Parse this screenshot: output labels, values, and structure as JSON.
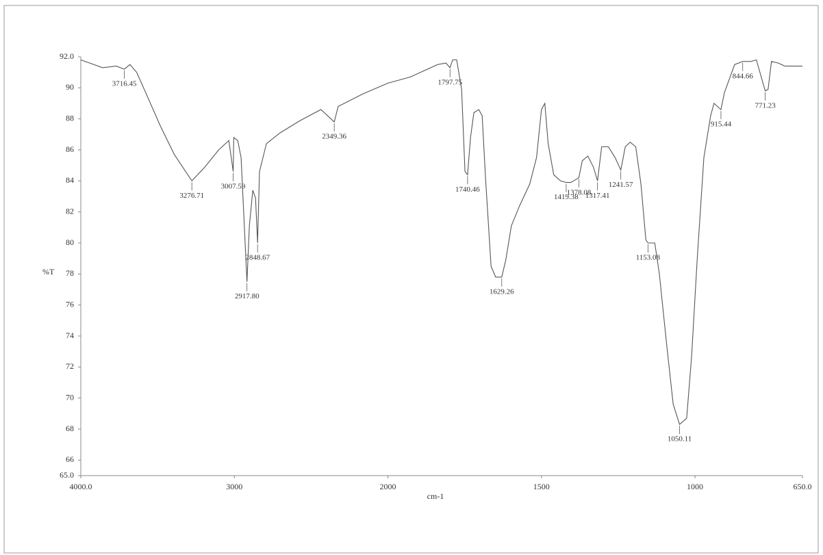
{
  "chart_data": {
    "type": "line",
    "ylabel": "%T",
    "xlabel": "cm-1",
    "xlim": [
      4000,
      650
    ],
    "x_scale_change": 2000,
    "ylim": [
      65,
      92
    ],
    "xticks": [
      {
        "value": 4000,
        "label": "4000.0"
      },
      3000,
      2000,
      1500,
      1000,
      {
        "value": 650,
        "label": "650.0"
      }
    ],
    "yticks": [
      {
        "value": 65,
        "label": "65.0"
      },
      66,
      68,
      70,
      72,
      74,
      76,
      78,
      80,
      82,
      84,
      86,
      88,
      90,
      {
        "value": 92,
        "label": "92.0"
      }
    ],
    "series": [
      {
        "color": "#555555",
        "x": [
          4000,
          3858,
          3769,
          3716.45,
          3680,
          3636,
          3569,
          3480,
          3391,
          3276.71,
          3191,
          3102,
          3036,
          3007.59,
          3004,
          2978,
          2956,
          2917.8,
          2902,
          2880,
          2862,
          2848.67,
          2836,
          2791,
          2702,
          2569,
          2436,
          2349.36,
          2324,
          2164,
          2000,
          1927,
          1838,
          1811,
          1797.75,
          1789,
          1776,
          1760,
          1749,
          1740.46,
          1731,
          1720,
          1704,
          1693,
          1682,
          1664,
          1649,
          1629.26,
          1616,
          1598,
          1571,
          1538,
          1516,
          1500,
          1489,
          1478,
          1460,
          1438,
          1419.38,
          1404,
          1378.08,
          1367,
          1349,
          1331,
          1317.41,
          1304,
          1282,
          1260,
          1241.57,
          1227,
          1211,
          1193,
          1176,
          1160,
          1153.08,
          1131,
          1116,
          1093,
          1071,
          1050.11,
          1027,
          1011,
          993,
          971,
          949,
          938,
          915.44,
          904,
          871,
          844.66,
          818,
          800,
          771.23,
          762,
          751,
          729,
          707,
          650
        ],
        "values": [
          91.8,
          91.3,
          91.4,
          91.2,
          91.5,
          91.0,
          89.5,
          87.5,
          85.7,
          84.0,
          84.9,
          86.0,
          86.6,
          84.6,
          86.8,
          86.6,
          85.5,
          77.5,
          81.1,
          83.4,
          82.9,
          80.0,
          84.6,
          86.4,
          87.1,
          87.9,
          88.6,
          87.8,
          88.8,
          89.6,
          90.3,
          90.7,
          91.5,
          91.6,
          91.3,
          91.8,
          91.8,
          89.9,
          84.6,
          84.4,
          86.8,
          88.4,
          88.6,
          88.2,
          84.2,
          78.5,
          77.8,
          77.8,
          78.9,
          81.1,
          82.4,
          83.8,
          85.5,
          88.6,
          89.0,
          86.4,
          84.4,
          84.0,
          83.9,
          83.9,
          84.2,
          85.3,
          85.6,
          84.9,
          84.0,
          86.2,
          86.2,
          85.5,
          84.7,
          86.2,
          86.5,
          86.2,
          83.8,
          80.2,
          80.0,
          80.0,
          78.0,
          73.6,
          69.6,
          68.3,
          68.7,
          72.7,
          78.9,
          85.5,
          88.2,
          89.0,
          88.6,
          89.7,
          91.5,
          91.7,
          91.7,
          91.8,
          89.8,
          89.9,
          91.7,
          91.6,
          91.4,
          91.4
        ]
      }
    ],
    "peaks": [
      {
        "x": 3716.45,
        "y": 91.2,
        "label": "3716.45"
      },
      {
        "x": 3276.71,
        "y": 84.0,
        "label": "3276.71"
      },
      {
        "x": 3007.59,
        "y": 84.6,
        "label": "3007.59"
      },
      {
        "x": 2917.8,
        "y": 77.5,
        "label": "2917.80"
      },
      {
        "x": 2848.67,
        "y": 80.0,
        "label": "2848.67"
      },
      {
        "x": 2349.36,
        "y": 87.8,
        "label": "2349.36"
      },
      {
        "x": 1797.75,
        "y": 91.3,
        "label": "1797.75"
      },
      {
        "x": 1740.46,
        "y": 84.4,
        "label": "1740.46"
      },
      {
        "x": 1629.26,
        "y": 77.8,
        "label": "1629.26"
      },
      {
        "x": 1419.38,
        "y": 83.9,
        "label": "1419.38"
      },
      {
        "x": 1378.08,
        "y": 84.2,
        "label": "1378.08"
      },
      {
        "x": 1317.41,
        "y": 84.0,
        "label": "1317.41"
      },
      {
        "x": 1241.57,
        "y": 84.7,
        "label": "1241.57"
      },
      {
        "x": 1153.08,
        "y": 80.0,
        "label": "1153.08"
      },
      {
        "x": 1050.11,
        "y": 68.3,
        "label": "1050.11"
      },
      {
        "x": 915.44,
        "y": 88.6,
        "label": "915.44"
      },
      {
        "x": 844.66,
        "y": 91.7,
        "label": "844.66"
      },
      {
        "x": 771.23,
        "y": 89.8,
        "label": "771.23"
      }
    ]
  }
}
